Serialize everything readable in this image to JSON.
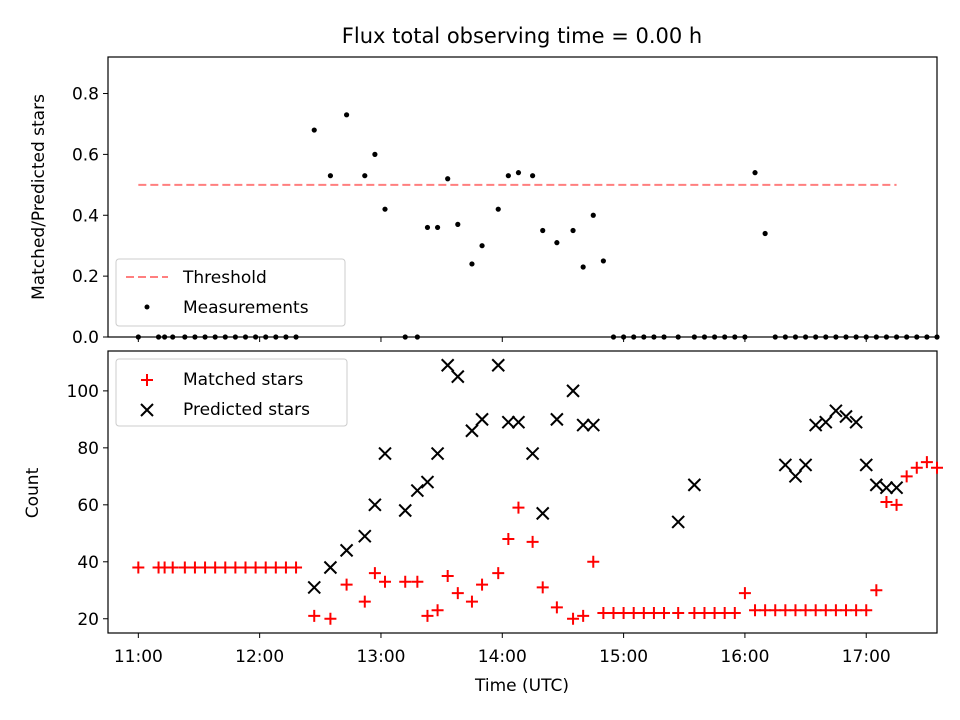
{
  "figure_title": "Flux total observing time = 0.00 h",
  "colors": {
    "threshold": "#ff7f7f",
    "measurements": "#000000",
    "matched": "#ff0000",
    "predicted": "#000000"
  },
  "chart_data": [
    {
      "type": "scatter",
      "title": "Flux total observing time = 0.00 h",
      "xlabel": "",
      "ylabel": "Matched/Predicted stars",
      "xlim": [
        "10:45",
        "17:35"
      ],
      "ylim": [
        0,
        0.92
      ],
      "yticks": [
        0.0,
        0.2,
        0.4,
        0.6,
        0.8
      ],
      "ytick_labels": [
        "0.0",
        "0.2",
        "0.4",
        "0.6",
        "0.8"
      ],
      "xticks": [
        "11:00",
        "12:00",
        "13:00",
        "14:00",
        "15:00",
        "16:00",
        "17:00"
      ],
      "grid": false,
      "legend": {
        "placement": "lower-left",
        "entries": [
          "Threshold",
          "Measurements"
        ]
      },
      "series": [
        {
          "name": "Threshold",
          "kind": "dashed-line",
          "x": [
            "11:00",
            "17:15"
          ],
          "y": [
            0.5,
            0.5
          ]
        },
        {
          "name": "Measurements",
          "kind": "dots",
          "x": [
            "11:00",
            "11:10",
            "11:13",
            "11:17",
            "11:23",
            "11:28",
            "11:33",
            "11:38",
            "11:43",
            "11:48",
            "11:53",
            "11:58",
            "12:03",
            "12:08",
            "12:13",
            "12:18",
            "12:27",
            "12:35",
            "12:43",
            "12:52",
            "12:57",
            "13:02",
            "13:12",
            "13:18",
            "13:23",
            "13:28",
            "13:33",
            "13:38",
            "13:45",
            "13:50",
            "13:58",
            "14:03",
            "14:08",
            "14:15",
            "14:20",
            "14:27",
            "14:35",
            "14:40",
            "14:45",
            "14:50",
            "14:55",
            "15:00",
            "15:05",
            "15:10",
            "15:15",
            "15:20",
            "15:27",
            "15:35",
            "15:40",
            "15:45",
            "15:50",
            "15:55",
            "16:00",
            "16:05",
            "16:10",
            "16:15",
            "16:20",
            "16:25",
            "16:30",
            "16:35",
            "16:40",
            "16:45",
            "16:50",
            "16:55",
            "17:00",
            "17:05",
            "17:10",
            "17:15",
            "17:20",
            "17:25",
            "17:30",
            "17:35"
          ],
          "y": [
            0.0,
            0.0,
            0.0,
            0.0,
            0.0,
            0.0,
            0.0,
            0.0,
            0.0,
            0.0,
            0.0,
            0.0,
            0.0,
            0.0,
            0.0,
            0.0,
            0.68,
            0.53,
            0.73,
            0.53,
            0.6,
            0.42,
            0.0,
            0.0,
            0.36,
            0.36,
            0.52,
            0.37,
            0.24,
            0.3,
            0.42,
            0.53,
            0.54,
            0.53,
            0.35,
            0.31,
            0.35,
            0.23,
            0.4,
            0.25,
            0.0,
            0.0,
            0.0,
            0.0,
            0.0,
            0.0,
            0.0,
            0.0,
            0.0,
            0.0,
            0.0,
            0.0,
            0.0,
            0.54,
            0.34,
            0.0,
            0.0,
            0.0,
            0.0,
            0.0,
            0.0,
            0.0,
            0.0,
            0.0,
            0.0,
            0.0,
            0.0,
            0.0,
            0.0,
            0.0,
            0.0,
            0.0
          ]
        }
      ]
    },
    {
      "type": "scatter",
      "title": "",
      "xlabel": "Time (UTC)",
      "ylabel": "Count",
      "xlim": [
        "10:45",
        "17:35"
      ],
      "ylim": [
        15,
        114
      ],
      "yticks": [
        20,
        40,
        60,
        80,
        100
      ],
      "ytick_labels": [
        "20",
        "40",
        "60",
        "80",
        "100"
      ],
      "xticks": [
        "11:00",
        "12:00",
        "13:00",
        "14:00",
        "15:00",
        "16:00",
        "17:00"
      ],
      "xtick_labels": [
        "11:00",
        "12:00",
        "13:00",
        "14:00",
        "15:00",
        "16:00",
        "17:00"
      ],
      "grid": false,
      "legend": {
        "placement": "upper-left",
        "entries": [
          "Matched stars",
          "Predicted stars"
        ]
      },
      "series": [
        {
          "name": "Matched stars",
          "marker": "plus",
          "x": [
            "11:00",
            "11:10",
            "11:13",
            "11:17",
            "11:23",
            "11:28",
            "11:33",
            "11:38",
            "11:43",
            "11:48",
            "11:53",
            "11:58",
            "12:03",
            "12:08",
            "12:13",
            "12:18",
            "12:27",
            "12:35",
            "12:43",
            "12:52",
            "12:57",
            "13:02",
            "13:12",
            "13:18",
            "13:23",
            "13:28",
            "13:33",
            "13:38",
            "13:45",
            "13:50",
            "13:58",
            "14:03",
            "14:08",
            "14:15",
            "14:20",
            "14:27",
            "14:35",
            "14:40",
            "14:45",
            "14:50",
            "14:55",
            "15:00",
            "15:05",
            "15:10",
            "15:15",
            "15:20",
            "15:27",
            "15:35",
            "15:40",
            "15:45",
            "15:50",
            "15:55",
            "16:00",
            "16:05",
            "16:10",
            "16:15",
            "16:20",
            "16:25",
            "16:30",
            "16:35",
            "16:40",
            "16:45",
            "16:50",
            "16:55",
            "17:00",
            "17:05",
            "17:10",
            "17:15",
            "17:20",
            "17:25",
            "17:30",
            "17:35"
          ],
          "y": [
            38,
            38,
            38,
            38,
            38,
            38,
            38,
            38,
            38,
            38,
            38,
            38,
            38,
            38,
            38,
            38,
            21,
            20,
            32,
            26,
            36,
            33,
            33,
            33,
            21,
            23,
            35,
            29,
            26,
            32,
            36,
            48,
            59,
            47,
            31,
            24,
            20,
            21,
            40,
            22,
            22,
            22,
            22,
            22,
            22,
            22,
            22,
            22,
            22,
            22,
            22,
            22,
            29,
            23,
            23,
            23,
            23,
            23,
            23,
            23,
            23,
            23,
            23,
            23,
            23,
            30,
            61,
            60,
            70,
            73,
            75,
            73
          ]
        },
        {
          "name": "Predicted stars",
          "marker": "x",
          "x": [
            "12:27",
            "12:35",
            "12:43",
            "12:52",
            "12:57",
            "13:02",
            "13:12",
            "13:18",
            "13:23",
            "13:28",
            "13:33",
            "13:38",
            "13:45",
            "13:50",
            "13:58",
            "14:03",
            "14:08",
            "14:15",
            "14:20",
            "14:27",
            "14:35",
            "14:40",
            "14:45",
            "15:27",
            "15:35",
            "16:20",
            "16:25",
            "16:30",
            "16:35",
            "16:40",
            "16:45",
            "16:50",
            "16:55",
            "17:00",
            "17:05",
            "17:10",
            "17:15"
          ],
          "y": [
            31,
            38,
            44,
            49,
            60,
            78,
            58,
            65,
            68,
            78,
            109,
            105,
            86,
            90,
            109,
            89,
            89,
            78,
            57,
            90,
            100,
            88,
            88,
            54,
            67,
            74,
            70,
            74,
            88,
            89,
            93,
            91,
            89,
            74,
            67,
            66,
            66
          ]
        }
      ]
    }
  ]
}
